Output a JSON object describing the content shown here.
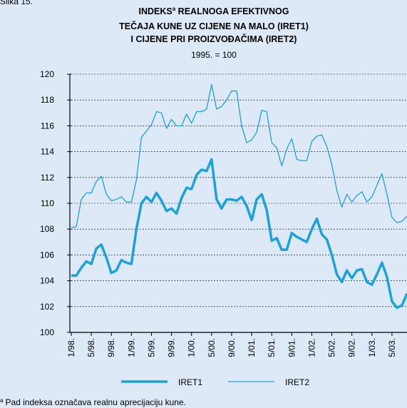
{
  "chart_data": {
    "type": "line",
    "figure_label": "Slika 15.",
    "title_lines": [
      "INDEKS",
      " REALNOGA EFEKTIVNOG",
      "TEČAJA KUNE UZ CIJENE NA MALO (IRET1)",
      "I CIJENE PRI PROIZVOĐAČIMA (IRET2)"
    ],
    "title_note_marker": "a",
    "subtitle": "1995. = 100",
    "footnote_marker": "a",
    "footnote": "Pad indeksa označava realnu aprecijaciju kune.",
    "categories": [
      "1/98.",
      null,
      null,
      null,
      "5/98.",
      null,
      null,
      null,
      "9/98.",
      null,
      null,
      null,
      "1/99.",
      null,
      null,
      null,
      "5/99.",
      null,
      null,
      null,
      "9/99.",
      null,
      null,
      null,
      "1/00.",
      null,
      null,
      null,
      "5/00.",
      null,
      null,
      null,
      "9/00.",
      null,
      null,
      null,
      "1/01.",
      null,
      null,
      null,
      "5/01.",
      null,
      null,
      null,
      "9/01.",
      null,
      null,
      null,
      "1/02.",
      null,
      null,
      null,
      "5/02.",
      null,
      null,
      null,
      "9/02.",
      null,
      null,
      null,
      "1/03.",
      null,
      null,
      null,
      "5/03.",
      null,
      null,
      null
    ],
    "series": [
      {
        "name": "IRET1",
        "color": "#1ba1dc",
        "width": 3.5,
        "values": [
          104.4,
          104.4,
          105.0,
          105.5,
          105.3,
          106.5,
          106.8,
          105.8,
          104.6,
          104.8,
          105.6,
          105.4,
          105.3,
          108.0,
          110.0,
          110.5,
          110.1,
          110.8,
          110.2,
          109.4,
          109.6,
          109.2,
          110.4,
          111.2,
          111.1,
          112.2,
          112.6,
          112.5,
          113.4,
          110.3,
          109.6,
          110.3,
          110.3,
          110.2,
          110.5,
          109.8,
          108.7,
          110.3,
          110.7,
          109.5,
          107.1,
          107.3,
          106.4,
          106.4,
          107.7,
          107.4,
          107.2,
          107.0,
          108.0,
          108.8,
          107.6,
          107.2,
          106.0,
          104.5,
          103.9,
          104.8,
          104.2,
          104.8,
          104.9,
          103.9,
          103.7,
          104.5,
          105.4,
          104.3,
          102.4,
          101.9,
          102.1,
          103.0
        ]
      },
      {
        "name": "IRET2",
        "color": "#1ba1dc",
        "width": 1.3,
        "values": [
          108.1,
          108.2,
          110.3,
          110.8,
          110.8,
          111.7,
          112.1,
          110.7,
          110.2,
          110.3,
          110.5,
          110.1,
          110.1,
          111.8,
          115.1,
          115.6,
          116.1,
          117.1,
          117.0,
          115.8,
          116.5,
          116.0,
          116.0,
          116.9,
          116.2,
          117.1,
          117.1,
          117.3,
          119.2,
          117.3,
          117.5,
          118.0,
          118.7,
          118.7,
          116.0,
          114.7,
          114.9,
          115.5,
          117.2,
          117.1,
          114.7,
          114.3,
          112.9,
          114.2,
          115.0,
          113.4,
          113.3,
          113.3,
          114.8,
          115.2,
          115.3,
          114.4,
          113.0,
          111.0,
          109.7,
          110.7,
          110.1,
          110.6,
          110.9,
          110.1,
          110.5,
          111.4,
          112.3,
          110.7,
          108.9,
          108.5,
          108.6,
          109.0
        ]
      }
    ],
    "ylim": [
      100,
      120
    ],
    "yticks": [
      100,
      102,
      104,
      106,
      108,
      110,
      112,
      114,
      116,
      118,
      120
    ],
    "grid": true
  }
}
